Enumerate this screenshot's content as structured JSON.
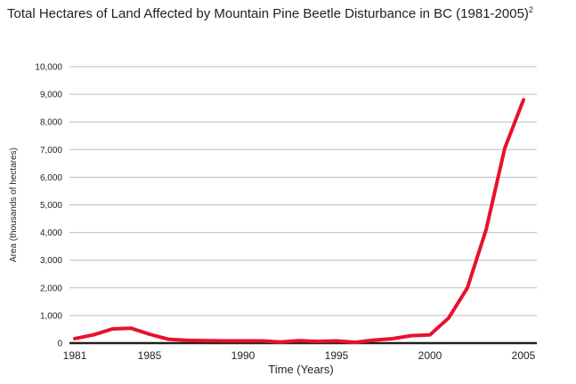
{
  "chart_data": {
    "type": "line",
    "title": "Total Hectares of Land Affected by Mountain Pine Beetle Disturbance in BC (1981-2005)",
    "title_superscript": "2",
    "xlabel": "Time (Years)",
    "ylabel": "Area (thousands of hectares)",
    "xlim": [
      1981,
      2005
    ],
    "ylim": [
      0,
      10000
    ],
    "x_ticks": [
      "1981",
      "1985",
      "1990",
      "1995",
      "2000",
      "2005"
    ],
    "x_tick_values": [
      1981,
      1985,
      1990,
      1995,
      2000,
      2005
    ],
    "y_ticks": [
      "0",
      "1,000",
      "2,000",
      "3,000",
      "4,000",
      "5,000",
      "6,000",
      "7,000",
      "8,000",
      "9,000",
      "10,000"
    ],
    "y_tick_values": [
      0,
      1000,
      2000,
      3000,
      4000,
      5000,
      6000,
      7000,
      8000,
      9000,
      10000
    ],
    "grid": "horizontal",
    "line_color": "#e8112d",
    "series": [
      {
        "x": [
          1981,
          1982,
          1983,
          1984,
          1985,
          1986,
          1987,
          1988,
          1989,
          1990,
          1991,
          1992,
          1993,
          1994,
          1995,
          1996,
          1997,
          1998,
          1999,
          2000,
          2001,
          2002,
          2003,
          2004,
          2005
        ],
        "values": [
          164,
          300,
          510,
          540,
          320,
          140,
          100,
          90,
          80,
          80,
          80,
          40,
          90,
          60,
          80,
          30,
          110,
          160,
          270,
          300,
          910,
          2000,
          4100,
          7050,
          8800
        ]
      }
    ]
  }
}
